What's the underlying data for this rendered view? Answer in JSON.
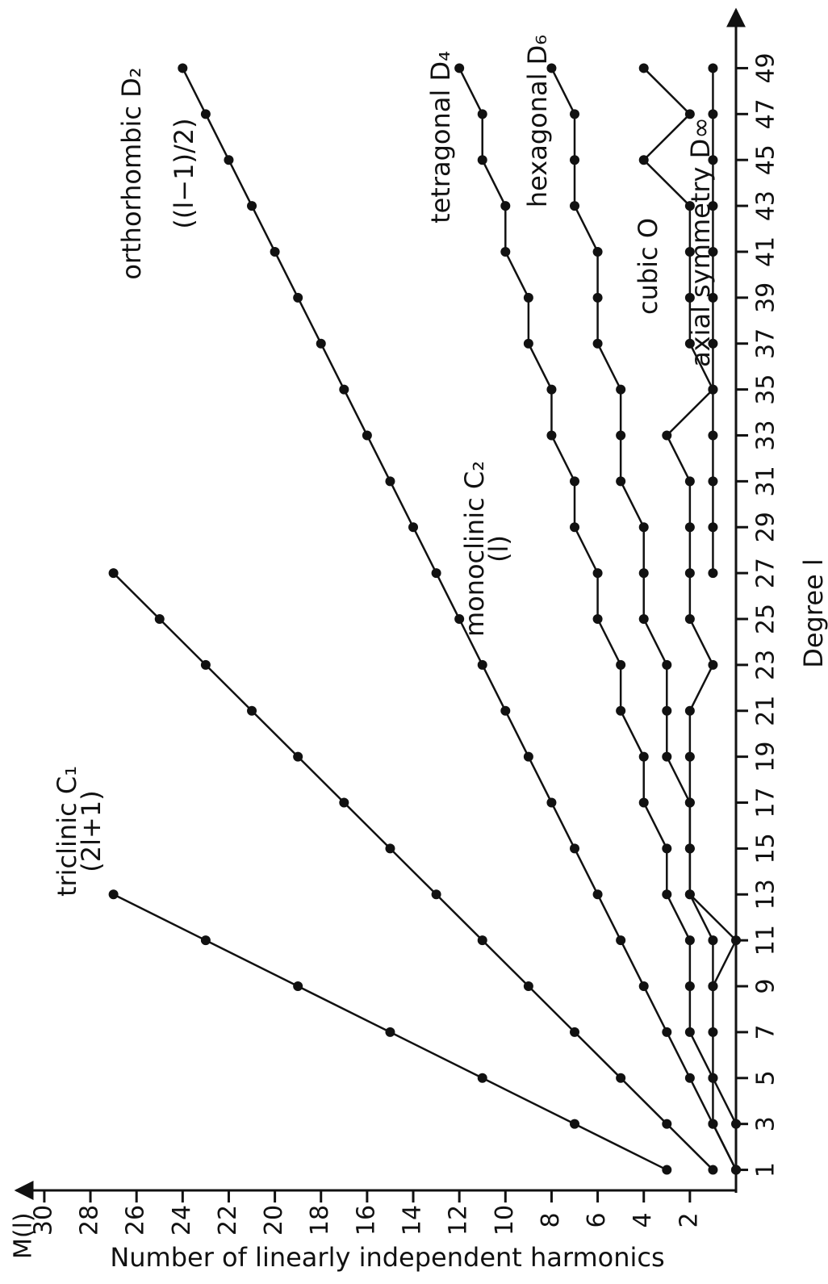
{
  "chart_data": {
    "type": "line",
    "x_label": "Degree l",
    "y_label": "Number of linearly independent harmonics",
    "y_axis_symbol": "M(l)",
    "x": [
      1,
      3,
      5,
      7,
      9,
      11,
      13,
      15,
      17,
      19,
      21,
      23,
      25,
      27,
      29,
      31,
      33,
      35,
      37,
      39,
      41,
      43,
      45,
      47,
      49
    ],
    "xlim": [
      0,
      50.5
    ],
    "xticks": [
      1,
      3,
      5,
      7,
      9,
      11,
      13,
      15,
      17,
      19,
      21,
      23,
      25,
      27,
      29,
      31,
      33,
      35,
      37,
      39,
      41,
      43,
      45,
      47,
      49
    ],
    "ylim": [
      0,
      31
    ],
    "yticks": [
      2,
      4,
      6,
      8,
      10,
      12,
      14,
      16,
      18,
      20,
      22,
      24,
      26,
      28,
      30
    ],
    "series": [
      {
        "name": "triclinic C₁",
        "formula": "(2l+1)",
        "color": "#111111",
        "values": [
          3,
          7,
          11,
          15,
          19,
          23,
          27,
          null,
          null,
          null,
          null,
          null,
          null,
          null,
          null,
          null,
          null,
          null,
          null,
          null,
          null,
          null,
          null,
          null,
          null
        ]
      },
      {
        "name": "monoclinic C₂",
        "formula": "(l)",
        "color": "#111111",
        "values": [
          1,
          3,
          5,
          7,
          9,
          11,
          13,
          15,
          17,
          19,
          21,
          23,
          25,
          27,
          null,
          null,
          null,
          null,
          null,
          null,
          null,
          null,
          null,
          null,
          null
        ]
      },
      {
        "name": "orthorhombic D₂",
        "formula": "((l−1)/2)",
        "color": "#111111",
        "values": [
          0,
          1,
          2,
          3,
          4,
          5,
          6,
          7,
          8,
          9,
          10,
          11,
          12,
          13,
          14,
          15,
          16,
          17,
          18,
          19,
          20,
          21,
          22,
          23,
          24
        ]
      },
      {
        "name": "tetragonal D₄",
        "color": "#111111",
        "values": [
          0,
          1,
          1,
          2,
          2,
          2,
          3,
          3,
          4,
          4,
          5,
          5,
          6,
          6,
          7,
          7,
          8,
          8,
          9,
          9,
          10,
          10,
          11,
          11,
          12
        ]
      },
      {
        "name": "hexagonal D₆",
        "color": "#111111",
        "values": [
          0,
          0,
          1,
          1,
          1,
          1,
          2,
          2,
          2,
          3,
          3,
          3,
          4,
          4,
          4,
          5,
          5,
          5,
          6,
          6,
          6,
          7,
          7,
          7,
          8
        ]
      },
      {
        "name": "cubic O",
        "color": "#111111",
        "values": [
          null,
          null,
          null,
          null,
          1,
          0,
          2,
          2,
          2,
          2,
          2,
          1,
          2,
          2,
          2,
          2,
          3,
          1,
          2,
          2,
          2,
          2,
          4,
          2,
          4
        ]
      },
      {
        "name": "axial symmetry D∞",
        "color": "#111111",
        "values": [
          null,
          null,
          null,
          null,
          null,
          null,
          null,
          null,
          null,
          null,
          null,
          null,
          null,
          1,
          1,
          1,
          1,
          1,
          1,
          1,
          1,
          1,
          1,
          1,
          1
        ]
      }
    ]
  }
}
